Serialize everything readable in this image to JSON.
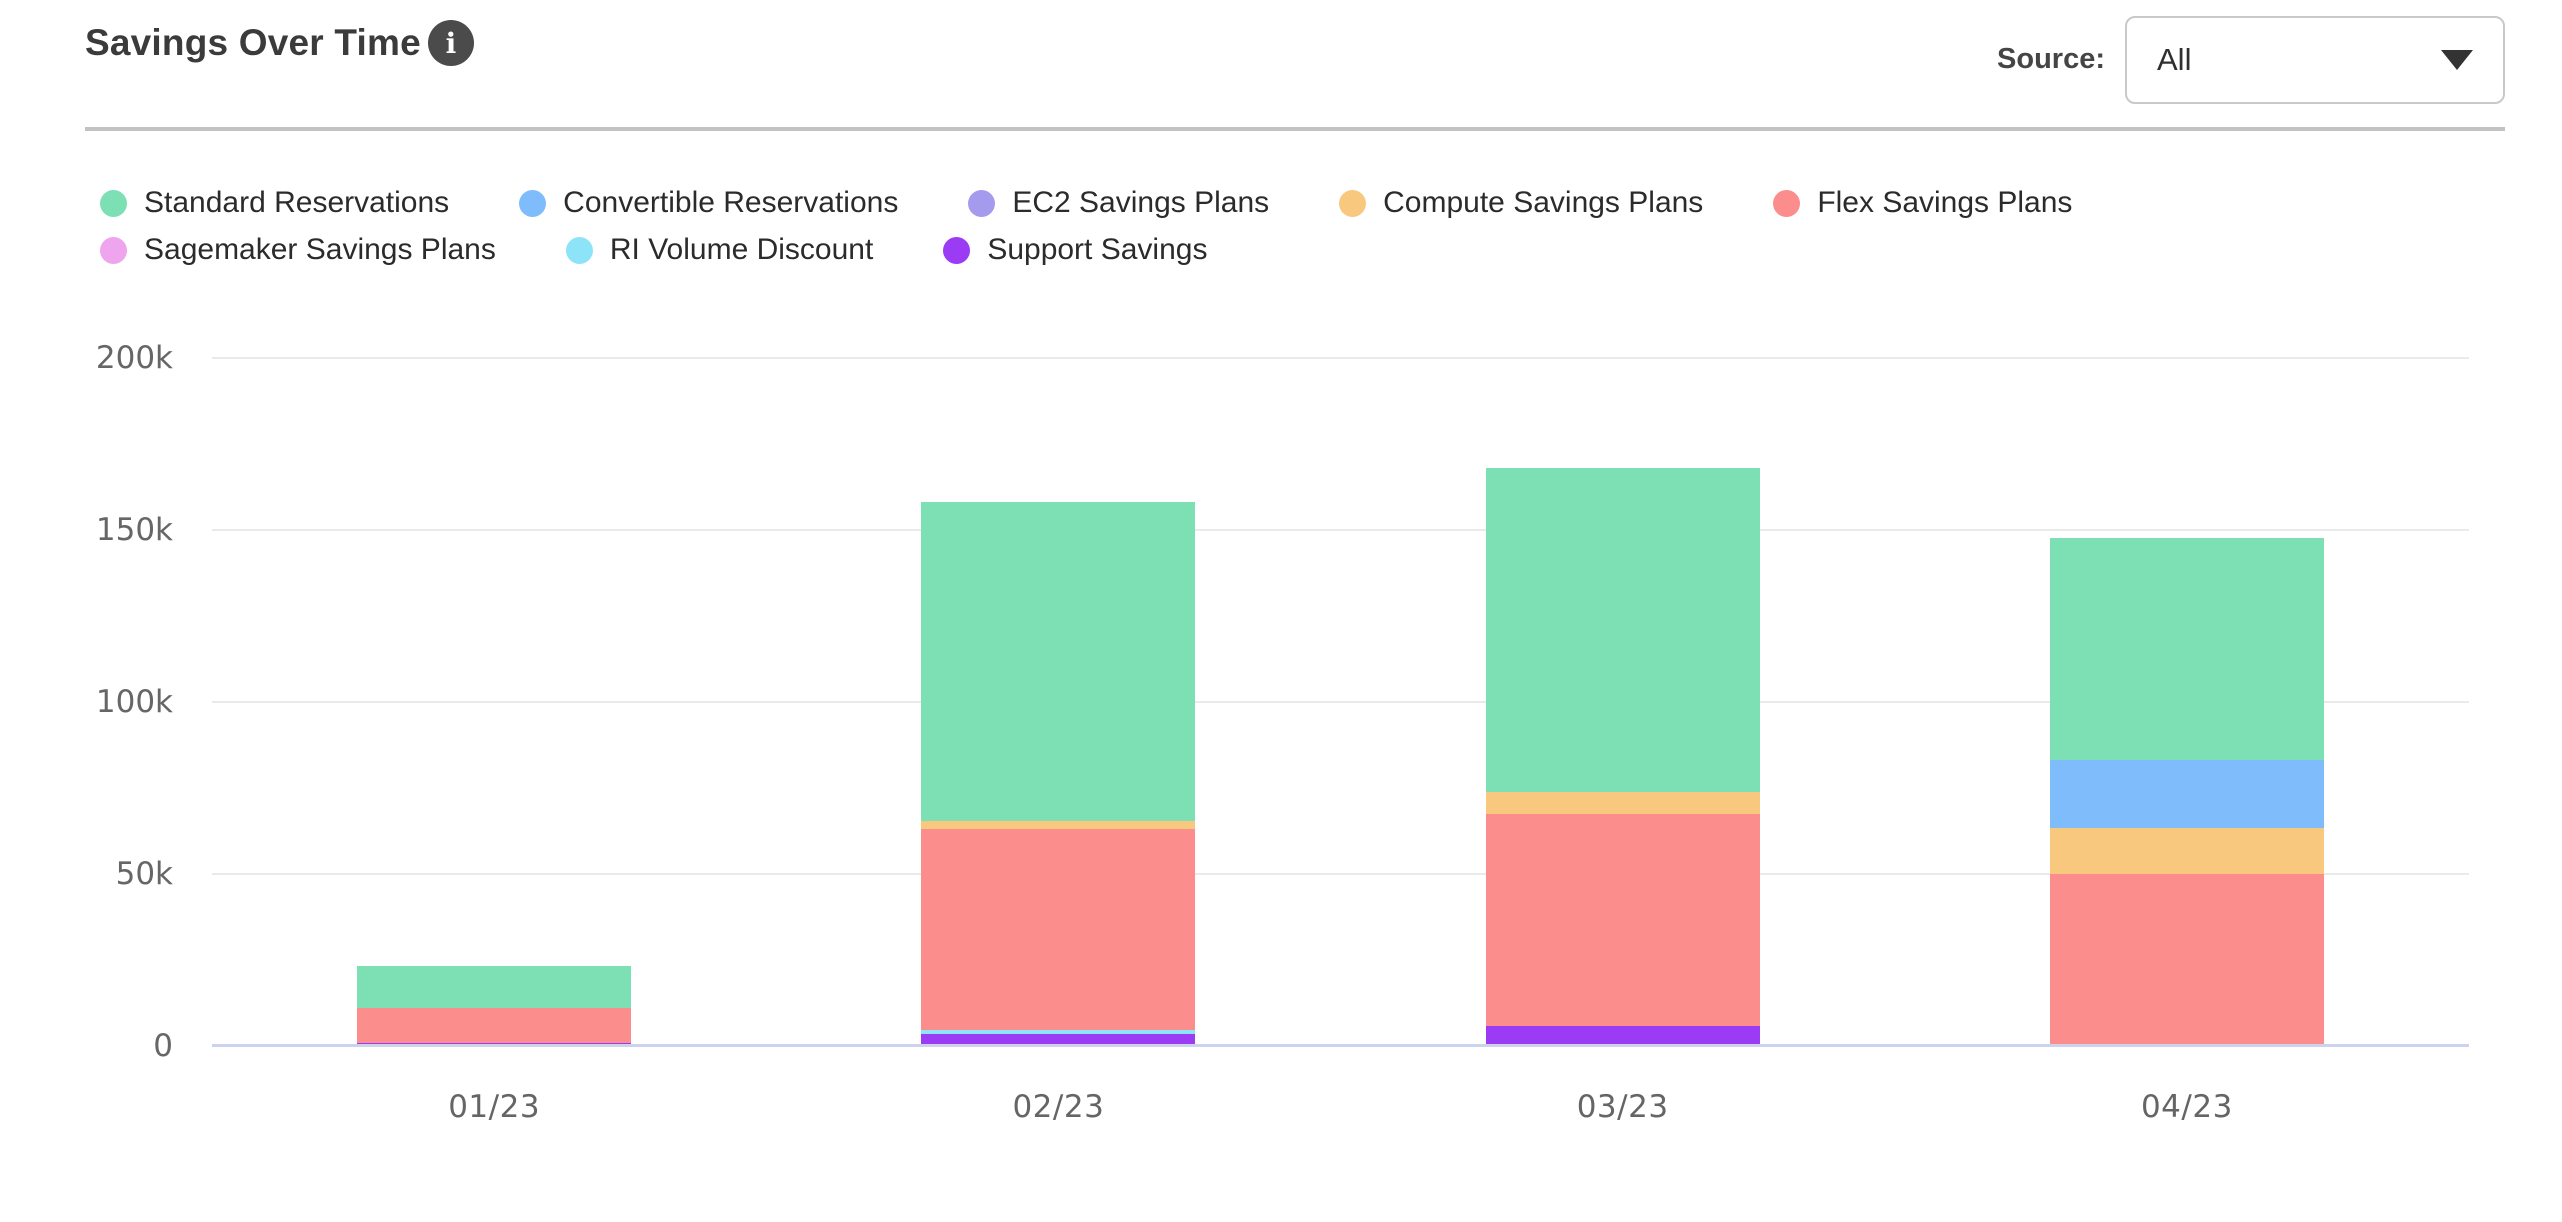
{
  "header": {
    "title": "Savings Over Time",
    "info_glyph": "i",
    "source_label": "Source:",
    "source_value": "All"
  },
  "chart_data": {
    "type": "bar",
    "stacked": true,
    "title": "Savings Over Time",
    "categories": [
      "01/23",
      "02/23",
      "03/23",
      "04/23"
    ],
    "series": [
      {
        "name": "Standard Reservations",
        "color": "#7DDFB4",
        "values": [
          12300,
          92700,
          94200,
          64600
        ]
      },
      {
        "name": "Convertible Reservations",
        "color": "#7EBCFB",
        "values": [
          0,
          0,
          0,
          19700
        ]
      },
      {
        "name": "EC2 Savings Plans",
        "color": "#A49BEF",
        "values": [
          0,
          0,
          0,
          0
        ]
      },
      {
        "name": "Compute Savings Plans",
        "color": "#F8C87E",
        "values": [
          0,
          2300,
          6400,
          13400
        ]
      },
      {
        "name": "Flex Savings Plans",
        "color": "#FC8D8D",
        "values": [
          10100,
          58400,
          61600,
          50000
        ]
      },
      {
        "name": "Sagemaker Savings Plans",
        "color": "#EEA5EE",
        "values": [
          0,
          0,
          0,
          0
        ]
      },
      {
        "name": "RI Volume Discount",
        "color": "#8DE4F8",
        "values": [
          0,
          1200,
          0,
          0
        ]
      },
      {
        "name": "Support Savings",
        "color": "#9B3BF4",
        "values": [
          900,
          3500,
          5800,
          0
        ]
      }
    ],
    "stack_order_bottom_to_top": [
      "Support Savings",
      "RI Volume Discount",
      "Flex Savings Plans",
      "Compute Savings Plans",
      "Convertible Reservations",
      "EC2 Savings Plans",
      "Sagemaker Savings Plans",
      "Standard Reservations"
    ],
    "y_ticks": [
      {
        "label": "0",
        "value": 0
      },
      {
        "label": "50k",
        "value": 50000
      },
      {
        "label": "100k",
        "value": 100000
      },
      {
        "label": "150k",
        "value": 150000
      },
      {
        "label": "200k",
        "value": 200000
      }
    ],
    "ylim": [
      0,
      200000
    ],
    "grid": true,
    "legend_position": "top",
    "legend_rows": [
      [
        "Standard Reservations",
        "Convertible Reservations",
        "EC2 Savings Plans",
        "Compute Savings Plans",
        "Flex Savings Plans"
      ],
      [
        "Sagemaker Savings Plans",
        "RI Volume Discount",
        "Support Savings"
      ]
    ]
  },
  "colors": {
    "grid": "#eaeaea",
    "baseline": "#cdd3ec",
    "divider": "#c2c2c2",
    "title_text": "#3b3b3b",
    "tick_text": "#666666"
  }
}
